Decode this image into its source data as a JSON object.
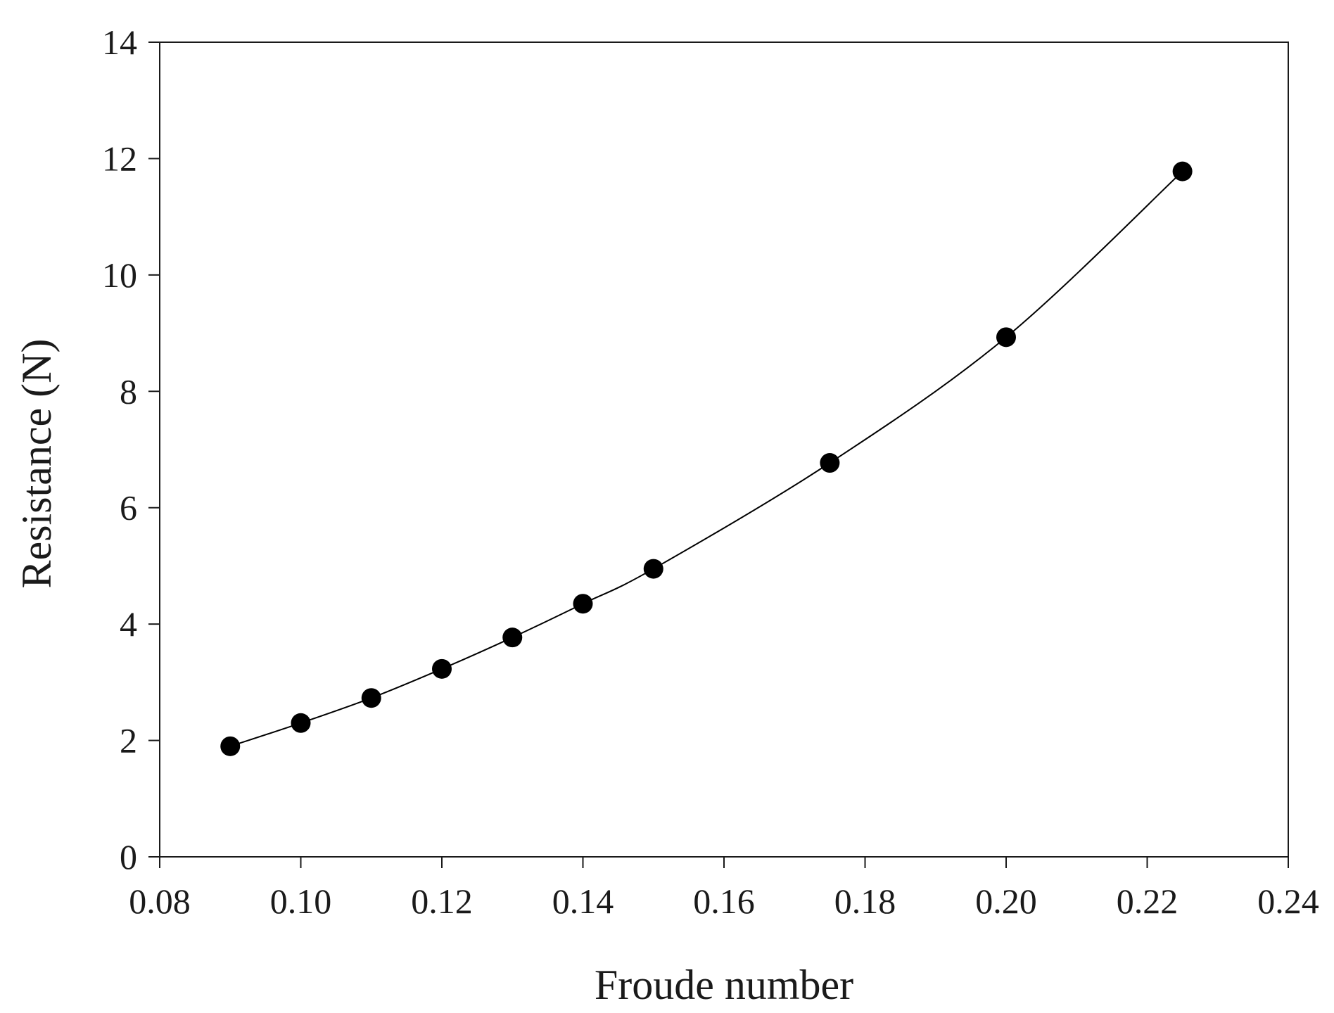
{
  "chart_data": {
    "type": "line",
    "title": "",
    "xlabel": "Froude number",
    "ylabel": "Resistance (N)",
    "xlim": [
      0.08,
      0.24
    ],
    "ylim": [
      0,
      14
    ],
    "x_ticks": [
      0.08,
      0.1,
      0.12,
      0.14,
      0.16,
      0.18,
      0.2,
      0.22,
      0.24
    ],
    "x_tick_labels": [
      "0.08",
      "0.10",
      "0.12",
      "0.14",
      "0.16",
      "0.18",
      "0.20",
      "0.22",
      "0.24"
    ],
    "y_ticks": [
      0,
      2,
      4,
      6,
      8,
      10,
      12,
      14
    ],
    "y_tick_labels": [
      "0",
      "2",
      "4",
      "6",
      "8",
      "10",
      "12",
      "14"
    ],
    "grid": false,
    "legend": "none",
    "marker": "filled-circle",
    "series": [
      {
        "x": [
          0.09,
          0.1,
          0.11,
          0.12,
          0.13,
          0.14,
          0.15,
          0.175,
          0.2,
          0.225
        ],
        "y": [
          1.9,
          2.3,
          2.73,
          3.23,
          3.77,
          4.35,
          4.95,
          6.77,
          8.93,
          11.78
        ],
        "color": "#000000"
      }
    ]
  }
}
